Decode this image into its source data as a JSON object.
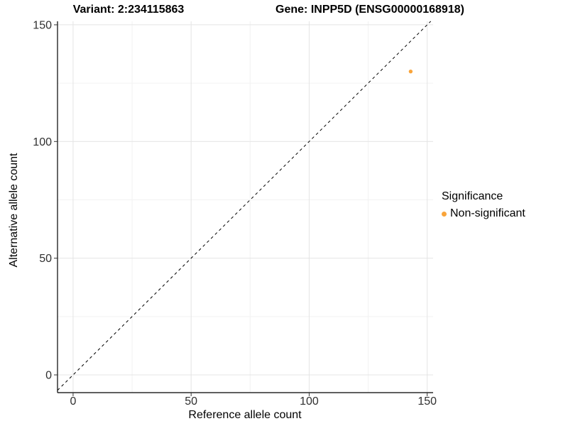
{
  "titles": {
    "left": "Variant: 2:234115863",
    "right": "Gene: INPP5D (ENSG00000168918)"
  },
  "legend": {
    "title": "Significance",
    "items": [
      {
        "label": "Non-significant",
        "color": "#F9A43A"
      }
    ]
  },
  "chart_data": {
    "type": "scatter",
    "title_left": "Variant: 2:234115863",
    "title_right": "Gene: INPP5D (ENSG00000168918)",
    "xlabel": "Reference allele count",
    "ylabel": "Alternative allele count",
    "xlim": [
      -6.6,
      152.5
    ],
    "ylim": [
      -7.6,
      151.5
    ],
    "x_ticks": [
      0,
      50,
      100,
      150
    ],
    "y_ticks": [
      0,
      50,
      100,
      150
    ],
    "x_minor_ticks": [
      25,
      75,
      125
    ],
    "y_minor_ticks": [
      25,
      75,
      125
    ],
    "grid": true,
    "legend_position": "right",
    "identity_line": {
      "slope": 1,
      "intercept": 0,
      "style": "dashed",
      "color": "#000000"
    },
    "series": [
      {
        "name": "Non-significant",
        "color": "#F9A43A",
        "points": [
          {
            "x": 143,
            "y": 130
          }
        ]
      }
    ],
    "colors": {
      "axis_line": "#000000",
      "tick_mark": "#333333",
      "tick_label": "#303030",
      "grid_major": "#E4E4E4",
      "grid_minor": "#F2F2F2",
      "panel_background": "#FFFFFF"
    }
  }
}
